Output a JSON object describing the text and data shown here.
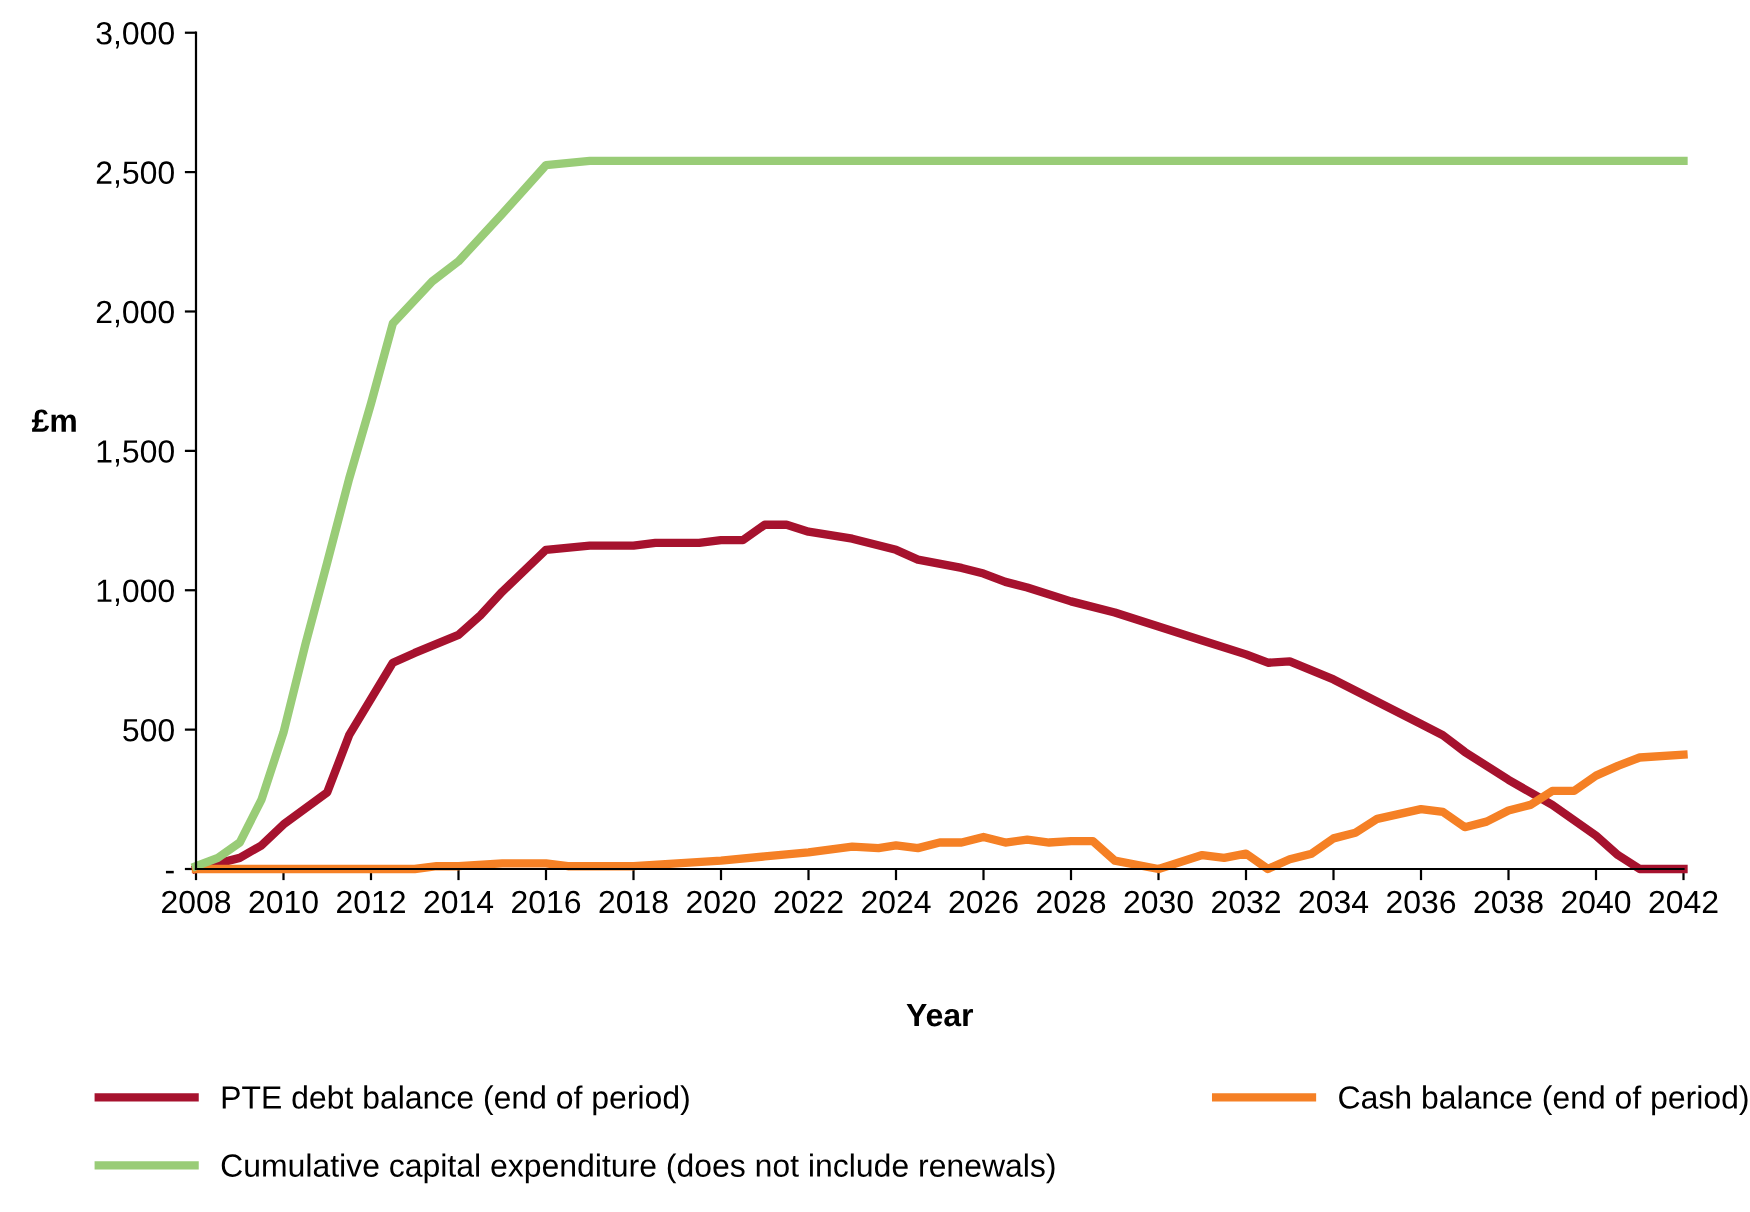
{
  "chart_data": {
    "type": "line",
    "xlabel": "Year",
    "ylabel": "£m",
    "xlim": [
      2008,
      2042
    ],
    "xticks": [
      2008,
      2010,
      2012,
      2014,
      2016,
      2018,
      2020,
      2022,
      2024,
      2026,
      2028,
      2030,
      2032,
      2034,
      2036,
      2038,
      2040,
      2042
    ],
    "ylim": [
      0,
      3000
    ],
    "yticks": [
      {
        "value": 0,
        "label": "-"
      },
      500,
      {
        "value": 1000,
        "label": "1,000"
      },
      {
        "value": 1500,
        "label": "1,500"
      },
      {
        "value": 2000,
        "label": "2,000"
      },
      {
        "value": 2500,
        "label": "2,500"
      },
      {
        "value": 3000,
        "label": "3,000"
      }
    ],
    "grid": false,
    "legend": "bottom",
    "marker": "none",
    "line_style": "solid",
    "series": [
      {
        "name": "PTE debt balance (end of period)",
        "color": "#a6122e",
        "x": [
          2008,
          2009,
          2009.5,
          2010,
          2011,
          2011.5,
          2012.5,
          2013,
          2014,
          2014.5,
          2015,
          2016,
          2017,
          2018,
          2018.5,
          2019.5,
          2020,
          2020.5,
          2021,
          2021.5,
          2022,
          2023,
          2024,
          2024.5,
          2025.5,
          2026,
          2026.5,
          2027,
          2028,
          2029,
          2030,
          2031,
          2032,
          2032.5,
          2033,
          2034,
          2035,
          2036,
          2036.5,
          2037,
          2038,
          2039,
          2040,
          2040.5,
          2041,
          2042
        ],
        "values": [
          0,
          40,
          85,
          160,
          275,
          480,
          740,
          775,
          840,
          910,
          995,
          1145,
          1160,
          1160,
          1170,
          1170,
          1180,
          1180,
          1235,
          1235,
          1210,
          1185,
          1145,
          1110,
          1080,
          1060,
          1030,
          1010,
          960,
          920,
          870,
          820,
          770,
          740,
          745,
          680,
          600,
          520,
          480,
          420,
          320,
          230,
          120,
          50,
          0,
          0
        ]
      },
      {
        "name": "Cash balance (end of period)",
        "color": "#f58025",
        "x": [
          2008,
          2013,
          2013.5,
          2014,
          2015,
          2016,
          2016.5,
          2018,
          2019,
          2020,
          2021,
          2022,
          2023,
          2023.6,
          2024,
          2024.5,
          2025,
          2025.5,
          2026,
          2026.5,
          2027,
          2027.5,
          2028,
          2028.5,
          2029,
          2030,
          2031,
          2031.5,
          2032,
          2032.5,
          2033,
          2033.5,
          2034,
          2034.5,
          2035,
          2036,
          2036.5,
          2037,
          2037.5,
          2038,
          2038.5,
          2039,
          2039.5,
          2040,
          2040.5,
          2041,
          2042
        ],
        "values": [
          0,
          0,
          10,
          10,
          20,
          20,
          10,
          10,
          20,
          30,
          45,
          60,
          80,
          75,
          85,
          75,
          95,
          95,
          115,
          95,
          105,
          95,
          100,
          100,
          30,
          0,
          50,
          40,
          55,
          0,
          35,
          55,
          110,
          130,
          180,
          215,
          205,
          150,
          170,
          210,
          230,
          280,
          280,
          335,
          370,
          400,
          410
        ]
      },
      {
        "name": "Cumulative capital expenditure (does not include renewals)",
        "color": "#99cc77",
        "x": [
          2008,
          2008.5,
          2009,
          2009.5,
          2010,
          2010.5,
          2011,
          2011.5,
          2012,
          2012.5,
          2013.4,
          2014,
          2015,
          2016,
          2017,
          2042
        ],
        "values": [
          10,
          40,
          95,
          250,
          490,
          805,
          1100,
          1400,
          1670,
          1957,
          2108,
          2180,
          2350,
          2525,
          2540,
          2540
        ]
      }
    ]
  }
}
